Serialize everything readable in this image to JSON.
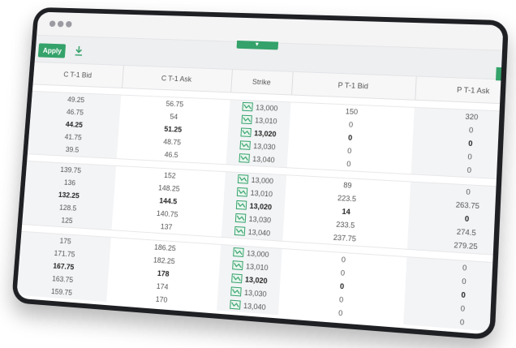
{
  "window": {
    "controls": [
      "close",
      "minimize",
      "maximize"
    ]
  },
  "toolbar": {
    "apply_label": "Apply",
    "download_icon": "download-icon",
    "collapse_icon": "chevron-down-icon"
  },
  "table": {
    "columns": [
      "C T-1 Bid",
      "C T-1 Ask",
      "Strike",
      "P T-1 Bid",
      "P T-1 Ask"
    ],
    "groups": [
      {
        "rows": [
          {
            "c_bid": "49.25",
            "c_ask": "56.75",
            "strike": "13,000",
            "p_bid": "150",
            "p_ask": "320"
          },
          {
            "c_bid": "46.75",
            "c_ask": "54",
            "strike": "13,010",
            "p_bid": "0",
            "p_ask": "0"
          },
          {
            "c_bid": "44.25",
            "c_ask": "51.25",
            "strike": "13,020",
            "p_bid": "0",
            "p_ask": "0",
            "bold": true
          },
          {
            "c_bid": "41.75",
            "c_ask": "48.75",
            "strike": "13,030",
            "p_bid": "0",
            "p_ask": "0"
          },
          {
            "c_bid": "39.5",
            "c_ask": "46.5",
            "strike": "13,040",
            "p_bid": "0",
            "p_ask": "0"
          }
        ]
      },
      {
        "rows": [
          {
            "c_bid": "139.75",
            "c_ask": "152",
            "strike": "13,000",
            "p_bid": "89",
            "p_ask": "0"
          },
          {
            "c_bid": "136",
            "c_ask": "148.25",
            "strike": "13,010",
            "p_bid": "223.5",
            "p_ask": "263.75"
          },
          {
            "c_bid": "132.25",
            "c_ask": "144.5",
            "strike": "13,020",
            "p_bid": "14",
            "p_ask": "0",
            "bold": true
          },
          {
            "c_bid": "128.5",
            "c_ask": "140.75",
            "strike": "13,030",
            "p_bid": "233.5",
            "p_ask": "274.5"
          },
          {
            "c_bid": "125",
            "c_ask": "137",
            "strike": "13,040",
            "p_bid": "237.75",
            "p_ask": "279.25"
          }
        ]
      },
      {
        "rows": [
          {
            "c_bid": "175",
            "c_ask": "186.25",
            "strike": "13,000",
            "p_bid": "0",
            "p_ask": "0"
          },
          {
            "c_bid": "171.75",
            "c_ask": "182.25",
            "strike": "13,010",
            "p_bid": "0",
            "p_ask": "0"
          },
          {
            "c_bid": "167.75",
            "c_ask": "178",
            "strike": "13,020",
            "p_bid": "0",
            "p_ask": "0",
            "bold": true
          },
          {
            "c_bid": "163.75",
            "c_ask": "174",
            "strike": "13,030",
            "p_bid": "0",
            "p_ask": "0"
          },
          {
            "c_bid": "159.75",
            "c_ask": "170",
            "strike": "13,040",
            "p_bid": "0",
            "p_ask": "0"
          }
        ]
      }
    ]
  },
  "colors": {
    "accent": "#34a26a",
    "frame": "#1f2024",
    "cell_shade": "#f3f4f6"
  }
}
